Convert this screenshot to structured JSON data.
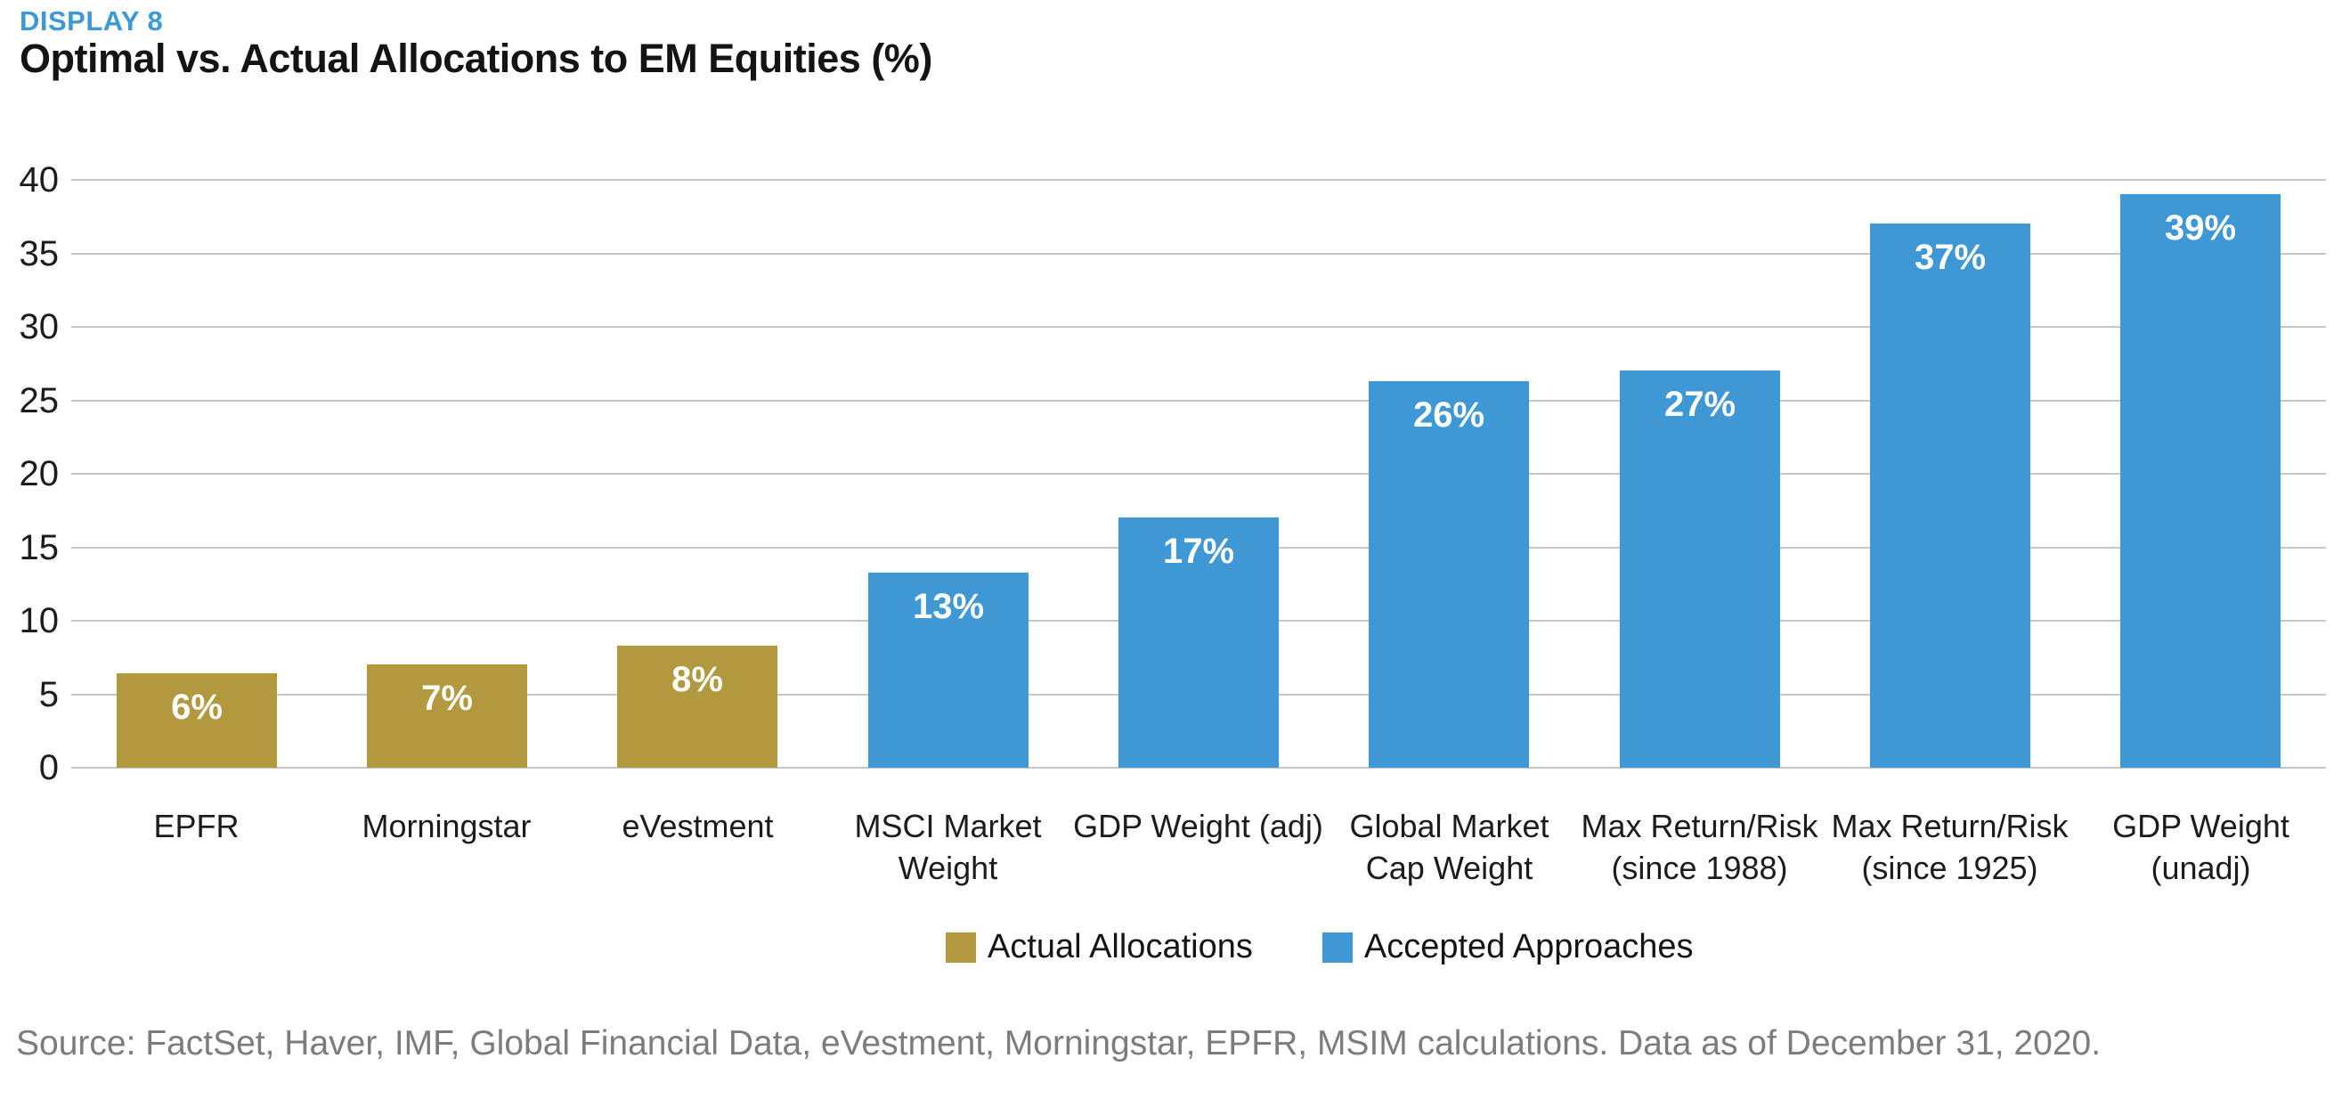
{
  "header": {
    "kicker": "DISPLAY 8",
    "title": "Optimal vs. Actual Allocations to EM Equities (%)"
  },
  "chart_data": {
    "type": "bar",
    "title": "Optimal vs. Actual Allocations to EM Equities (%)",
    "categories": [
      "EPFR",
      "Morningstar",
      "eVestment",
      "MSCI Market Weight",
      "GDP Weight (adj)",
      "Global Market Cap Weight",
      "Max Return/Risk (since 1988)",
      "Max Return/Risk (since 1925)",
      "GDP Weight (unadj)"
    ],
    "category_lines": [
      [
        "EPFR"
      ],
      [
        "Morningstar"
      ],
      [
        "eVestment"
      ],
      [
        "MSCI Market",
        "Weight"
      ],
      [
        "GDP Weight (adj)"
      ],
      [
        "Global Market",
        "Cap Weight"
      ],
      [
        "Max Return/Risk",
        "(since 1988)"
      ],
      [
        "Max Return/Risk",
        "(since 1925)"
      ],
      [
        "GDP Weight",
        "(unadj)"
      ]
    ],
    "values": [
      6,
      7,
      8,
      13,
      17,
      26,
      27,
      37,
      39
    ],
    "value_labels": [
      "6%",
      "7%",
      "8%",
      "13%",
      "17%",
      "26%",
      "27%",
      "37%",
      "39%"
    ],
    "plotted_heights": [
      6.4,
      7.0,
      8.3,
      13.3,
      17.0,
      26.3,
      27.0,
      37.0,
      39.0
    ],
    "series_assignment": [
      "Actual Allocations",
      "Actual Allocations",
      "Actual Allocations",
      "Accepted Approaches",
      "Accepted Approaches",
      "Accepted Approaches",
      "Accepted Approaches",
      "Accepted Approaches",
      "Accepted Approaches"
    ],
    "ylim": [
      0,
      40
    ],
    "yticks": [
      0,
      5,
      10,
      15,
      20,
      25,
      30,
      35,
      40
    ],
    "grid": true,
    "legend_position": "bottom",
    "xlabel": "",
    "ylabel": ""
  },
  "legend": {
    "items": [
      {
        "label": "Actual Allocations",
        "color": "#B2993D"
      },
      {
        "label": "Accepted Approaches",
        "color": "#3E98D6"
      }
    ]
  },
  "footer": {
    "source": "Source: FactSet, Haver, IMF, Global Financial Data, eVestment, Morningstar, EPFR, MSIM calculations. Data as of December 31, 2020."
  },
  "colors": {
    "kicker": "#3E98D6",
    "actual_allocations": "#B2993D",
    "accepted_approaches": "#3E98D6",
    "grid": "#C6C6C6",
    "axis_text": "#1C1C1C",
    "bar_label_text": "#FFFFFF",
    "source_text": "#7C7C7C"
  }
}
